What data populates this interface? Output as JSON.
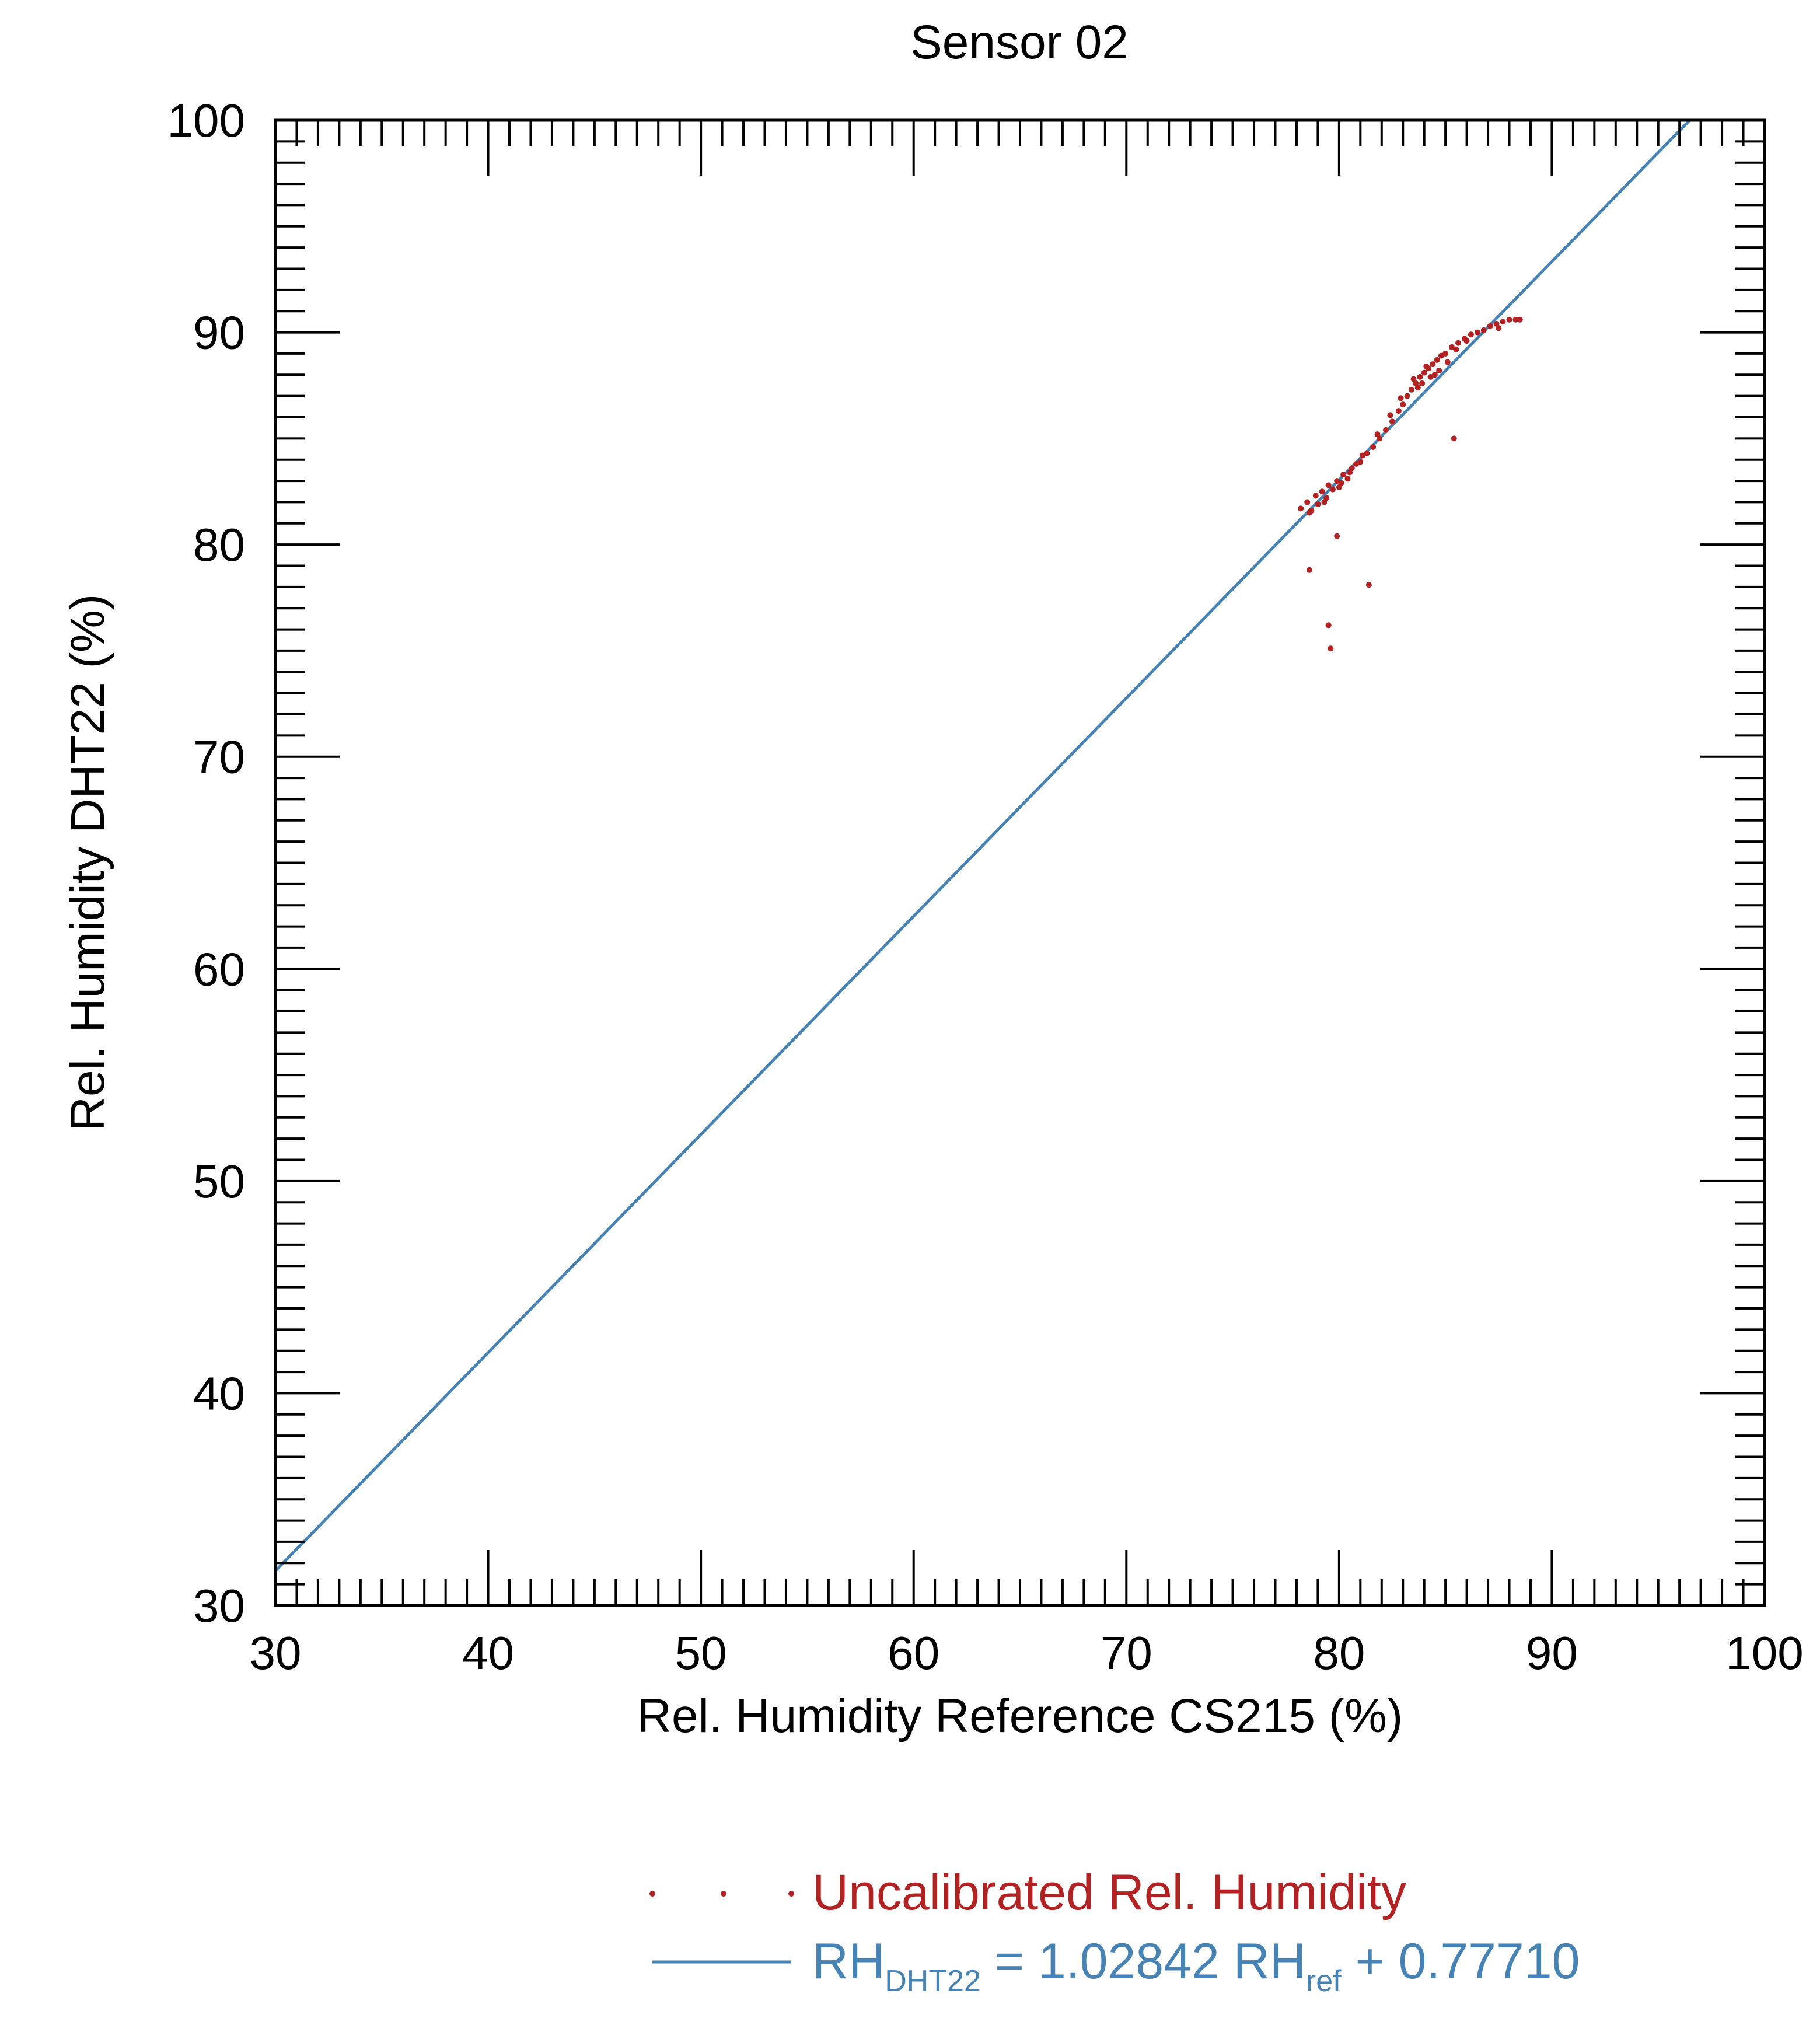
{
  "chart_data": {
    "type": "scatter",
    "title": "Sensor 02",
    "xlabel": "Rel. Humidity Reference CS215 (%)",
    "ylabel": "Rel. Humidity DHT22 (%)",
    "xlim": [
      30,
      100
    ],
    "ylim": [
      30,
      100
    ],
    "x_ticks": [
      "30",
      "40",
      "50",
      "60",
      "70",
      "80",
      "90",
      "100"
    ],
    "y_ticks": [
      "30",
      "40",
      "50",
      "60",
      "70",
      "80",
      "90",
      "100"
    ],
    "grid": false,
    "legend_position": "bottom",
    "colors": {
      "scatter": "#b22222",
      "fit": "#4682b4",
      "axis": "#000000"
    },
    "series": [
      {
        "name": "Uncalibrated Rel. Humidity",
        "kind": "scatter",
        "points": [
          [
            78.2,
            81.7
          ],
          [
            78.5,
            82.0
          ],
          [
            78.7,
            81.6
          ],
          [
            78.9,
            82.3
          ],
          [
            79.0,
            81.9
          ],
          [
            79.2,
            82.5
          ],
          [
            79.4,
            82.2
          ],
          [
            79.5,
            82.8
          ],
          [
            79.7,
            82.6
          ],
          [
            79.9,
            83.0
          ],
          [
            80.0,
            82.7
          ],
          [
            80.2,
            83.3
          ],
          [
            80.4,
            83.1
          ],
          [
            80.6,
            83.6
          ],
          [
            80.8,
            83.8
          ],
          [
            81.0,
            83.9
          ],
          [
            81.3,
            84.3
          ],
          [
            81.6,
            84.6
          ],
          [
            81.9,
            85.0
          ],
          [
            82.2,
            85.4
          ],
          [
            82.5,
            85.8
          ],
          [
            82.8,
            86.3
          ],
          [
            83.0,
            86.6
          ],
          [
            83.2,
            87.0
          ],
          [
            83.4,
            87.3
          ],
          [
            83.6,
            87.6
          ],
          [
            83.8,
            87.9
          ],
          [
            84.0,
            88.1
          ],
          [
            84.2,
            88.3
          ],
          [
            84.4,
            88.5
          ],
          [
            84.6,
            88.7
          ],
          [
            84.8,
            88.9
          ],
          [
            85.0,
            89.0
          ],
          [
            85.3,
            89.3
          ],
          [
            85.6,
            89.5
          ],
          [
            85.9,
            89.7
          ],
          [
            86.2,
            89.9
          ],
          [
            86.5,
            90.0
          ],
          [
            86.8,
            90.1
          ],
          [
            87.1,
            90.3
          ],
          [
            87.4,
            90.4
          ],
          [
            87.7,
            90.5
          ],
          [
            88.0,
            90.6
          ],
          [
            88.3,
            90.6
          ],
          [
            83.9,
            87.6
          ],
          [
            84.3,
            87.9
          ],
          [
            84.7,
            88.2
          ],
          [
            85.1,
            88.6
          ],
          [
            83.5,
            87.8
          ],
          [
            84.1,
            88.4
          ],
          [
            82.9,
            86.9
          ],
          [
            82.4,
            86.1
          ],
          [
            81.8,
            85.2
          ],
          [
            80.5,
            83.4
          ],
          [
            79.3,
            82.0
          ],
          [
            78.6,
            81.5
          ],
          [
            86.0,
            89.6
          ],
          [
            85.5,
            89.2
          ],
          [
            84.5,
            88.0
          ],
          [
            83.7,
            87.4
          ],
          [
            81.1,
            84.2
          ],
          [
            80.1,
            82.9
          ],
          [
            87.5,
            90.2
          ],
          [
            88.5,
            90.6
          ],
          [
            78.6,
            78.8
          ],
          [
            79.9,
            80.4
          ],
          [
            81.4,
            78.1
          ],
          [
            79.5,
            76.2
          ],
          [
            79.6,
            75.1
          ],
          [
            85.4,
            85.0
          ]
        ]
      },
      {
        "name": "RH",
        "kind": "line",
        "slope": 1.02842,
        "intercept": 0.7771
      }
    ],
    "legend": [
      {
        "label": "Uncalibrated Rel. Humidity"
      },
      {
        "label_main": "RH",
        "label_sub": "DHT22",
        "label_mid": " =  1.02842 RH",
        "label_sub2": "ref",
        "label_end": " + 0.77710"
      }
    ]
  }
}
